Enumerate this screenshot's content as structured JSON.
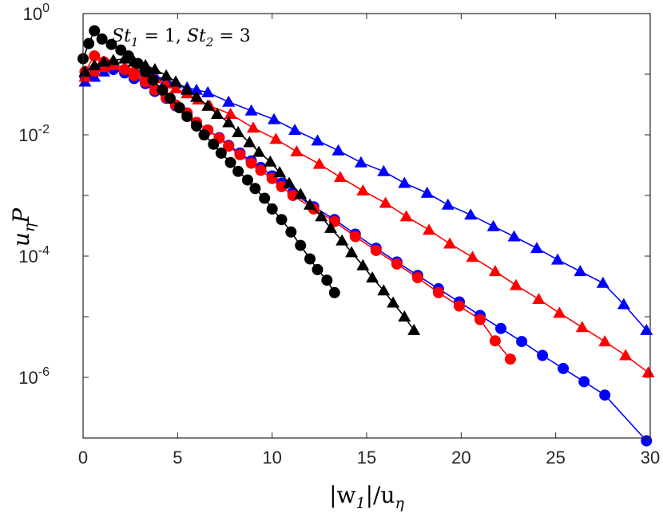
{
  "chart_data": {
    "type": "line",
    "title": "",
    "annotation": "St_1 = 1, St_2 = 3",
    "annotation_parts": {
      "a": "St",
      "a_sub": "1",
      "mid": " = 1, ",
      "b": "St",
      "b_sub": "2",
      "end": " = 3"
    },
    "xlabel": "|w1|/uη",
    "xlabel_parts": {
      "a": "|w",
      "a_sub": "1",
      "b": "|/u",
      "b_sub": "η"
    },
    "ylabel": "uη P",
    "ylabel_parts": {
      "a": "u",
      "a_sub": "η",
      "b": "P"
    },
    "yscale": "log",
    "xlim": [
      0,
      30
    ],
    "ylim_exp": [
      -7,
      0
    ],
    "xticks": [
      "0",
      "5",
      "10",
      "15",
      "20",
      "25",
      "30"
    ],
    "xtick_values": [
      0,
      5,
      10,
      15,
      20,
      25,
      30
    ],
    "yticks": [
      {
        "exp": -6,
        "base": "10",
        "sup": "-6"
      },
      {
        "exp": -4,
        "base": "10",
        "sup": "-4"
      },
      {
        "exp": -2,
        "base": "10",
        "sup": "-2"
      },
      {
        "exp": 0,
        "base": "10",
        "sup": "0"
      }
    ],
    "series": [
      {
        "name": "blue-triangles",
        "color": "#0000ff",
        "marker": "triangle",
        "x": [
          0.1,
          0.6,
          1.1,
          1.6,
          2.2,
          2.7,
          3.3,
          3.8,
          4.4,
          4.9,
          5.5,
          6.0,
          6.6,
          7.7,
          8.9,
          10.1,
          11.2,
          12.4,
          13.5,
          14.7,
          15.9,
          17.0,
          18.2,
          19.3,
          20.5,
          21.7,
          22.8,
          24.0,
          25.1,
          26.3,
          27.5,
          28.6,
          29.8
        ],
        "values": [
          0.075,
          0.09,
          0.11,
          0.135,
          0.13,
          0.12,
          0.11,
          0.095,
          0.08,
          0.07,
          0.06,
          0.055,
          0.05,
          0.035,
          0.025,
          0.018,
          0.012,
          0.008,
          0.0055,
          0.0035,
          0.0025,
          0.0016,
          0.0011,
          0.0007,
          0.00048,
          0.00031,
          0.00021,
          0.000135,
          8.7e-05,
          5.6e-05,
          3.6e-05,
          1.6e-05,
          6e-06
        ]
      },
      {
        "name": "blue-circles",
        "color": "#0000ff",
        "marker": "circle",
        "x": [
          0.1,
          0.6,
          1.1,
          1.6,
          2.2,
          2.7,
          3.3,
          3.8,
          4.4,
          4.9,
          5.5,
          6.0,
          6.6,
          7.2,
          7.7,
          8.3,
          8.9,
          9.4,
          10.0,
          10.5,
          11.1,
          12.2,
          13.3,
          14.4,
          15.5,
          16.6,
          17.7,
          18.8,
          19.9,
          21.0,
          22.1,
          23.2,
          24.3,
          25.4,
          26.5,
          27.6,
          29.8
        ],
        "values": [
          0.09,
          0.12,
          0.13,
          0.12,
          0.105,
          0.085,
          0.07,
          0.052,
          0.04,
          0.03,
          0.022,
          0.016,
          0.012,
          0.009,
          0.0067,
          0.005,
          0.0037,
          0.0029,
          0.0021,
          0.0016,
          0.0011,
          0.00065,
          0.0004,
          0.00023,
          0.000135,
          8e-05,
          4.8e-05,
          2.9e-05,
          1.75e-05,
          1.05e-05,
          6.4e-06,
          3.9e-06,
          2.3e-06,
          1.4e-06,
          8.5e-07,
          5.1e-07,
          9e-08
        ]
      },
      {
        "name": "red-triangles",
        "color": "#ff0000",
        "marker": "triangle",
        "x": [
          0.1,
          0.6,
          1.1,
          1.6,
          2.2,
          2.7,
          3.3,
          3.8,
          4.4,
          4.9,
          5.5,
          6.1,
          6.7,
          7.8,
          9.0,
          10.2,
          11.3,
          12.5,
          13.6,
          14.8,
          16.0,
          17.1,
          18.3,
          19.4,
          20.6,
          21.8,
          22.9,
          24.1,
          25.2,
          26.4,
          27.6,
          28.7,
          29.9
        ],
        "values": [
          0.09,
          0.11,
          0.13,
          0.14,
          0.13,
          0.12,
          0.1,
          0.085,
          0.07,
          0.058,
          0.048,
          0.038,
          0.03,
          0.022,
          0.013,
          0.0085,
          0.0053,
          0.0033,
          0.002,
          0.0012,
          0.00075,
          0.00045,
          0.00027,
          0.00016,
          9.6e-05,
          5.6e-05,
          3.3e-05,
          1.95e-05,
          1.15e-05,
          6.7e-06,
          3.9e-06,
          2.3e-06,
          1.2e-06
        ]
      },
      {
        "name": "red-circles",
        "color": "#ff0000",
        "marker": "circle",
        "x": [
          0.1,
          0.6,
          1.1,
          1.6,
          2.2,
          2.7,
          3.3,
          3.8,
          4.4,
          4.9,
          5.5,
          6.0,
          6.6,
          7.2,
          7.7,
          8.3,
          8.9,
          9.4,
          10.0,
          10.5,
          11.1,
          12.2,
          13.3,
          14.4,
          15.5,
          16.6,
          17.7,
          18.8,
          19.9,
          21.0,
          21.8,
          22.6
        ],
        "values": [
          0.11,
          0.2,
          0.16,
          0.15,
          0.12,
          0.095,
          0.075,
          0.055,
          0.041,
          0.031,
          0.023,
          0.016,
          0.012,
          0.0088,
          0.0065,
          0.0047,
          0.0034,
          0.0026,
          0.0019,
          0.0014,
          0.001,
          0.0006,
          0.00037,
          0.00021,
          0.000124,
          7.4e-05,
          4.4e-05,
          2.5e-05,
          1.5e-05,
          9e-06,
          4e-06,
          2e-06
        ]
      },
      {
        "name": "black-triangles",
        "color": "#000000",
        "marker": "triangle",
        "x": [
          0.1,
          0.6,
          1.1,
          1.6,
          2.2,
          2.7,
          3.3,
          3.8,
          4.4,
          4.9,
          5.5,
          6.0,
          6.6,
          7.1,
          7.7,
          8.2,
          8.8,
          9.3,
          9.9,
          10.4,
          10.9,
          11.5,
          12.0,
          12.6,
          13.1,
          13.7,
          14.2,
          14.8,
          15.3,
          15.9,
          16.4,
          17.0,
          17.5
        ],
        "values": [
          0.11,
          0.14,
          0.16,
          0.17,
          0.18,
          0.16,
          0.14,
          0.12,
          0.095,
          0.075,
          0.055,
          0.042,
          0.03,
          0.022,
          0.016,
          0.011,
          0.0075,
          0.0052,
          0.0036,
          0.0024,
          0.0016,
          0.00105,
          0.0007,
          0.00045,
          0.00029,
          0.00018,
          0.000115,
          7e-05,
          4.4e-05,
          2.7e-05,
          1.7e-05,
          1e-05,
          6e-06
        ]
      },
      {
        "name": "black-circles",
        "color": "#000000",
        "marker": "circle",
        "x": [
          0.0,
          0.3,
          0.6,
          1.0,
          1.5,
          2.0,
          2.4,
          2.9,
          3.3,
          3.7,
          4.2,
          4.6,
          5.1,
          5.5,
          6.0,
          6.4,
          6.9,
          7.3,
          7.8,
          8.2,
          8.7,
          9.1,
          9.6,
          10.0,
          10.5,
          11.0,
          11.5,
          12.0,
          12.4,
          12.9,
          13.3
        ],
        "values": [
          0.18,
          0.32,
          0.52,
          0.38,
          0.31,
          0.25,
          0.2,
          0.15,
          0.11,
          0.08,
          0.055,
          0.04,
          0.028,
          0.02,
          0.014,
          0.01,
          0.007,
          0.005,
          0.0035,
          0.0025,
          0.0018,
          0.0013,
          0.0009,
          0.0006,
          0.0004,
          0.00025,
          0.00015,
          9e-05,
          6e-05,
          4e-05,
          2.5e-05
        ]
      }
    ]
  }
}
